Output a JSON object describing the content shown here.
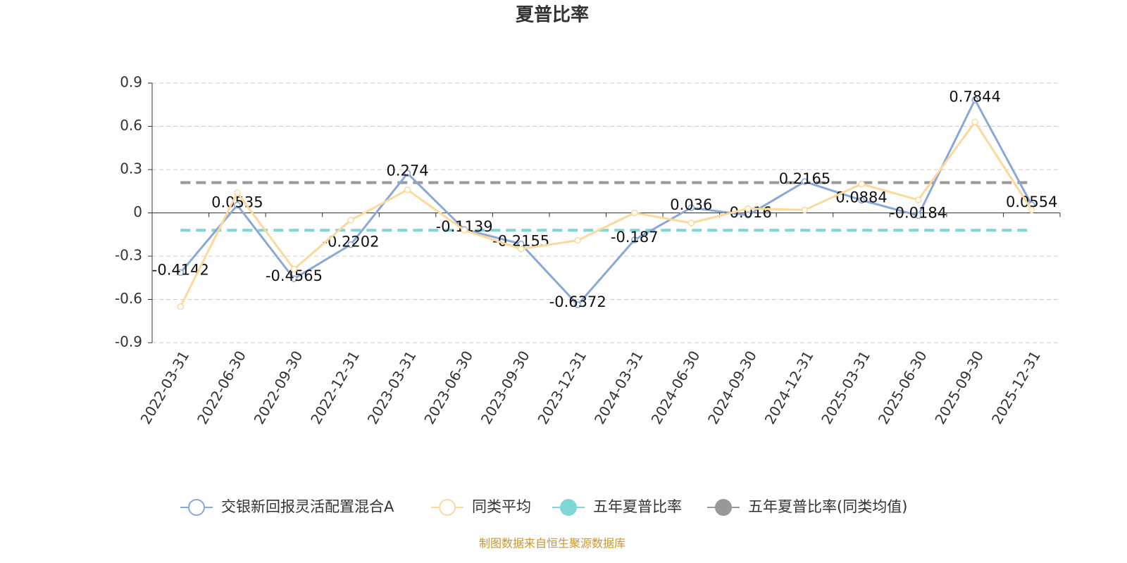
{
  "chart_data": {
    "type": "line",
    "title": "夏普比率",
    "categories": [
      "2022-03-31",
      "2022-06-30",
      "2022-09-30",
      "2022-12-31",
      "2023-03-31",
      "2023-06-30",
      "2023-09-30",
      "2023-12-31",
      "2024-03-31",
      "2024-06-30",
      "2024-09-30",
      "2024-12-31",
      "2025-03-31",
      "2025-06-30",
      "2025-09-30",
      "2025-12-31"
    ],
    "series": [
      {
        "name": "交银新回报灵活配置混合A",
        "color": "#88a8d8",
        "data_labels": true,
        "values": [
          -0.4142,
          0.0535,
          -0.4565,
          -0.2202,
          0.274,
          -0.1139,
          -0.2155,
          -0.6372,
          -0.187,
          0.036,
          -0.016,
          0.2165,
          0.0884,
          -0.0184,
          0.7844,
          0.0554
        ]
      },
      {
        "name": "同类平均",
        "color": "#fdd89b",
        "values": [
          -0.65,
          0.14,
          -0.39,
          -0.05,
          0.16,
          -0.12,
          -0.25,
          -0.19,
          0.0,
          -0.07,
          0.03,
          0.02,
          0.2,
          0.09,
          0.63,
          0.02
        ]
      },
      {
        "name": "五年夏普比率",
        "color": "#7fd6d6",
        "line_style": "dashed",
        "value": -0.12
      },
      {
        "name": "五年夏普比率(同类均值)",
        "color": "#999999",
        "line_style": "dashed",
        "value": 0.21
      }
    ],
    "ylim": [
      -0.9,
      0.9
    ],
    "yticks": [
      -0.9,
      -0.6,
      -0.3,
      0,
      0.3,
      0.6,
      0.9
    ],
    "grid": true,
    "legend": "bottom",
    "source": "制图数据来自恒生聚源数据库"
  }
}
